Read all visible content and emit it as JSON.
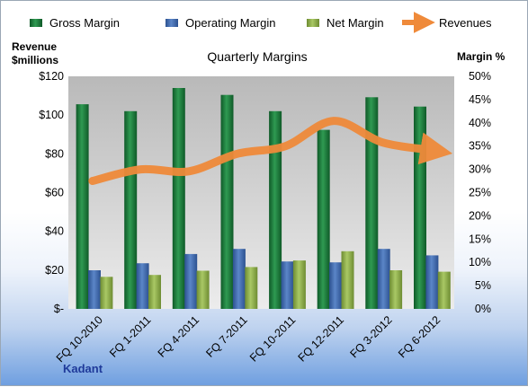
{
  "colors": {
    "gross": "#1f7a3a",
    "operating": "#3e6db0",
    "net": "#8fb04a",
    "revenue": "#ef8a3a",
    "plot_bg_top": "#bdbdbd",
    "plot_bg_bottom": "#e8e8e8"
  },
  "chart_data": {
    "type": "bar",
    "title": "Quarterly Margins",
    "left_axis_title_line1": "Revenue",
    "left_axis_title_line2": "$millions",
    "right_axis_title": "Margin %",
    "brand_label": "Kadant",
    "categories": [
      "FQ 10-2010",
      "FQ 1-2011",
      "FQ 4-2011",
      "FQ 7-2011",
      "FQ 10-2011",
      "FQ 12-2011",
      "FQ 3-2012",
      "FQ 6-2012"
    ],
    "y_left": {
      "min": 0,
      "max": 120,
      "ticks": [
        0,
        20,
        40,
        60,
        80,
        100,
        120
      ],
      "tick_labels": [
        "$-",
        "$20",
        "$40",
        "$60",
        "$80",
        "$100",
        "$120"
      ]
    },
    "y_right": {
      "min": 0,
      "max": 50,
      "ticks": [
        0,
        5,
        10,
        15,
        20,
        25,
        30,
        35,
        40,
        45,
        50
      ],
      "tick_labels": [
        "0%",
        "5%",
        "10%",
        "15%",
        "20%",
        "25%",
        "30%",
        "35%",
        "40%",
        "45%",
        "50%"
      ]
    },
    "legend": [
      "Gross Margin",
      "Operating Margin",
      "Net Margin",
      "Revenues"
    ],
    "series": [
      {
        "name": "Gross Margin",
        "axis": "right",
        "kind": "bar",
        "values": [
          44,
          42.5,
          47.5,
          46,
          42.5,
          38.5,
          45.5,
          43.5
        ]
      },
      {
        "name": "Operating Margin",
        "axis": "right",
        "kind": "bar",
        "values": [
          8.3,
          9.8,
          11.8,
          12.9,
          10.2,
          10.0,
          12.9,
          11.5
        ]
      },
      {
        "name": "Net Margin",
        "axis": "right",
        "kind": "bar",
        "values": [
          6.9,
          7.3,
          8.2,
          9.0,
          10.4,
          12.4,
          8.3,
          8.0
        ]
      },
      {
        "name": "Revenues",
        "axis": "left",
        "kind": "line",
        "values": [
          66,
          72,
          71,
          80,
          84,
          97,
          86,
          82
        ]
      }
    ],
    "grid": false,
    "legend_position": "top"
  }
}
